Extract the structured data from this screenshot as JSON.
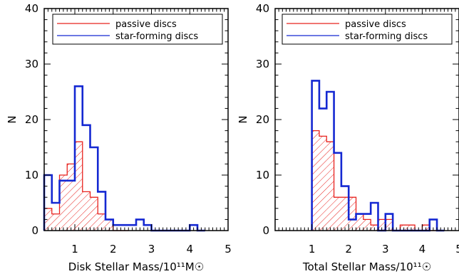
{
  "chart_data": [
    {
      "type": "histogram",
      "bin_width": 0.2,
      "xlim": [
        0.2,
        5.0
      ],
      "ylim": [
        0,
        40
      ],
      "xticks": [
        1,
        2,
        3,
        4,
        5
      ],
      "yticks": [
        0,
        10,
        20,
        30,
        40
      ],
      "xlabel": "Disk Stellar Mass/10¹¹M☉",
      "ylabel": "N",
      "legend_position": "top",
      "series": [
        {
          "name": "passive discs",
          "color": "#e8231f",
          "hatched": true,
          "bin_starts": [
            0.2,
            0.4,
            0.6,
            0.8,
            1.0,
            1.2,
            1.4,
            1.6,
            1.8,
            2.0,
            2.2
          ],
          "values": [
            4,
            3,
            10,
            12,
            16,
            7,
            6,
            3,
            2,
            0,
            0
          ]
        },
        {
          "name": "star-forming discs",
          "color": "#1428d2",
          "hatched": false,
          "bin_starts": [
            0.2,
            0.4,
            0.6,
            0.8,
            1.0,
            1.2,
            1.4,
            1.6,
            1.8,
            2.0,
            2.2,
            2.4,
            2.6,
            2.8,
            3.0,
            3.2,
            3.4,
            3.6,
            3.8,
            4.0,
            4.2
          ],
          "values": [
            10,
            5,
            9,
            9,
            26,
            19,
            15,
            7,
            2,
            1,
            1,
            1,
            2,
            1,
            0,
            0,
            0,
            0,
            0,
            1,
            0
          ]
        }
      ]
    },
    {
      "type": "histogram",
      "bin_width": 0.2,
      "xlim": [
        0.0,
        5.0
      ],
      "ylim": [
        0,
        40
      ],
      "xticks": [
        1,
        2,
        3,
        4,
        5
      ],
      "yticks": [
        0,
        10,
        20,
        30,
        40
      ],
      "xlabel": "Total Stellar Mass/10¹¹☉",
      "ylabel": "N",
      "legend_position": "top",
      "series": [
        {
          "name": "passive discs",
          "color": "#e8231f",
          "hatched": true,
          "bin_starts": [
            1.0,
            1.2,
            1.4,
            1.6,
            1.8,
            2.0,
            2.2,
            2.4,
            2.6,
            2.8,
            3.0,
            3.2,
            3.4,
            3.6,
            3.8,
            4.0,
            4.2
          ],
          "values": [
            18,
            17,
            16,
            6,
            6,
            6,
            3,
            2,
            1,
            2,
            2,
            0,
            1,
            1,
            0,
            1,
            0
          ]
        },
        {
          "name": "star-forming discs",
          "color": "#1428d2",
          "hatched": false,
          "bin_starts": [
            1.0,
            1.2,
            1.4,
            1.6,
            1.8,
            2.0,
            2.2,
            2.4,
            2.6,
            2.8,
            3.0,
            3.2,
            3.4,
            3.6,
            3.8,
            4.0,
            4.2,
            4.4
          ],
          "values": [
            27,
            22,
            25,
            14,
            8,
            2,
            3,
            3,
            5,
            0,
            3,
            0,
            0,
            0,
            0,
            0,
            2,
            0
          ]
        }
      ]
    }
  ]
}
